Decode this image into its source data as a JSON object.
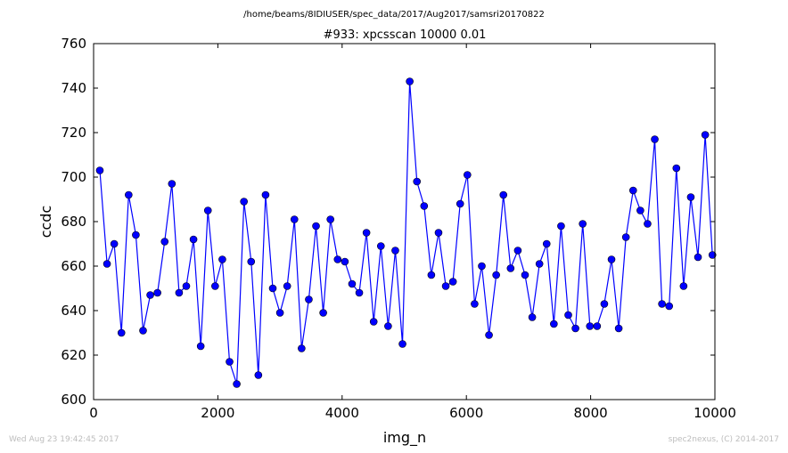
{
  "chart_data": {
    "type": "line",
    "suptitle": "/home/beams/8IDIUSER/spec_data/2017/Aug2017/samsri20170822",
    "title": "#933: xpcsscan 10000 0.01",
    "xlabel": "img_n",
    "ylabel": "ccdc",
    "xlim": [
      0,
      10000
    ],
    "ylim": [
      600,
      760
    ],
    "xticks": [
      0,
      2000,
      4000,
      6000,
      8000,
      10000
    ],
    "yticks": [
      600,
      620,
      640,
      660,
      680,
      700,
      720,
      740,
      760
    ],
    "grid": false,
    "series": [
      {
        "color": "#0000ff",
        "marker": "circle",
        "x": [
          100,
          216,
          332,
          448,
          564,
          680,
          796,
          912,
          1028,
          1144,
          1260,
          1376,
          1492,
          1608,
          1724,
          1840,
          1956,
          2072,
          2188,
          2304,
          2420,
          2536,
          2652,
          2768,
          2884,
          3000,
          3116,
          3232,
          3348,
          3464,
          3580,
          3696,
          3812,
          3928,
          4044,
          4160,
          4276,
          4392,
          4508,
          4624,
          4740,
          4856,
          4972,
          5088,
          5204,
          5320,
          5436,
          5552,
          5668,
          5784,
          5900,
          6016,
          6132,
          6248,
          6364,
          6480,
          6596,
          6712,
          6828,
          6944,
          7060,
          7176,
          7292,
          7408,
          7524,
          7640,
          7756,
          7872,
          7988,
          8104,
          8220,
          8336,
          8452,
          8568,
          8684,
          8800,
          8916,
          9032,
          9148,
          9264,
          9380,
          9496,
          9612,
          9728,
          9844,
          9960
        ],
        "y": [
          703,
          661,
          670,
          630,
          692,
          674,
          631,
          647,
          648,
          671,
          697,
          648,
          651,
          672,
          624,
          685,
          651,
          663,
          617,
          607,
          689,
          662,
          611,
          692,
          650,
          639,
          651,
          681,
          623,
          645,
          678,
          639,
          681,
          663,
          662,
          652,
          648,
          675,
          635,
          669,
          633,
          667,
          625,
          743,
          698,
          687,
          656,
          675,
          651,
          653,
          688,
          701,
          643,
          660,
          629,
          656,
          692,
          659,
          667,
          656,
          637,
          661,
          670,
          634,
          678,
          638,
          632,
          679,
          633,
          633,
          643,
          663,
          632,
          673,
          694,
          685,
          679,
          717,
          643,
          642,
          704,
          651,
          691,
          664,
          719,
          665
        ]
      }
    ]
  },
  "footer": {
    "timestamp": "Wed Aug 23 19:42:45 2017",
    "credit": "spec2nexus, (C) 2014-2017"
  }
}
